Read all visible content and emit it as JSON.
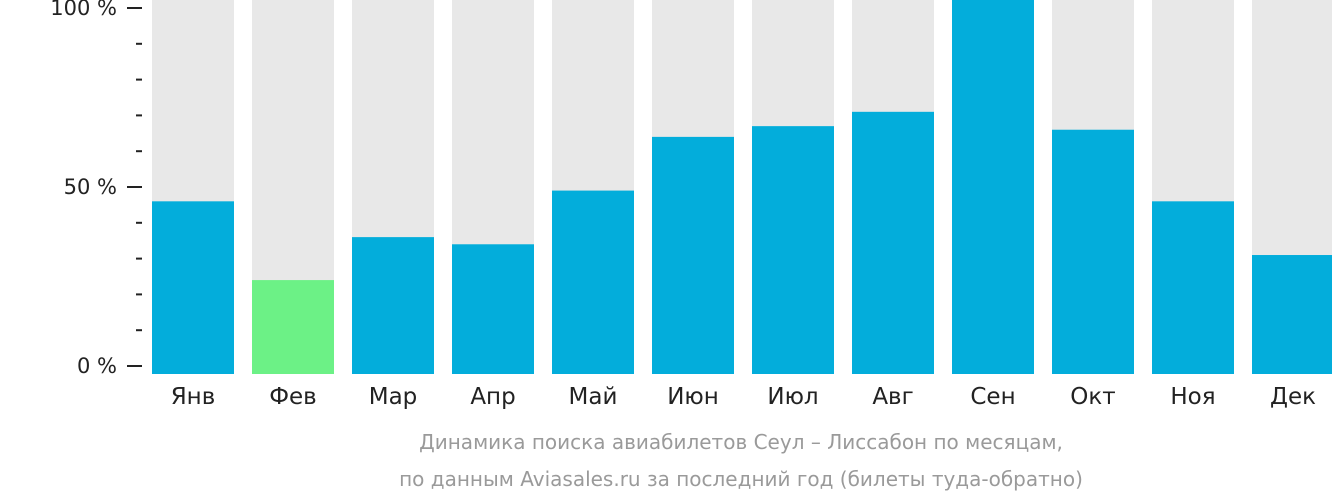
{
  "chart_data": {
    "type": "bar",
    "categories": [
      "Янв",
      "Фев",
      "Мар",
      "Апр",
      "Май",
      "Июн",
      "Июл",
      "Авг",
      "Сен",
      "Окт",
      "Ноя",
      "Дек"
    ],
    "values": [
      46,
      24,
      36,
      34,
      49,
      64,
      67,
      71,
      106,
      66,
      46,
      31
    ],
    "highlight_index": 1,
    "ylim": [
      0,
      100
    ],
    "yticks": [
      {
        "value": 0,
        "label": "0 %"
      },
      {
        "value": 50,
        "label": "50 %"
      },
      {
        "value": 100,
        "label": "100 %"
      }
    ],
    "minor_tick_step": 10,
    "grid": false,
    "colors": {
      "bar": "#03addb",
      "highlight": "#6cf186",
      "track": "#e8e8e8",
      "axis": "#222222"
    }
  },
  "caption": {
    "line1": "Динамика поиска авиабилетов Сеул – Лиссабон по месяцам,",
    "line2": "по данным Aviasales.ru за последний год (билеты туда-обратно)"
  }
}
